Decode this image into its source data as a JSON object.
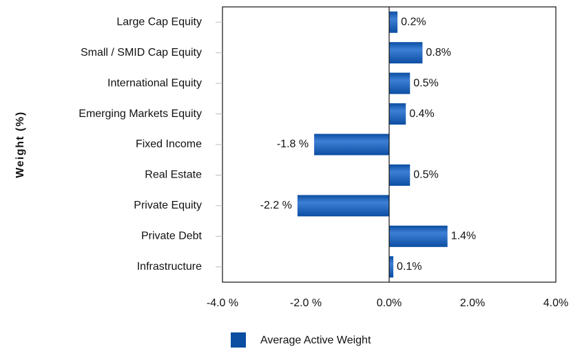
{
  "chart_data": {
    "type": "hbar",
    "ylabel": "Weight (%)",
    "categories": [
      "Large Cap Equity",
      "Small / SMID Cap Equity",
      "International Equity",
      "Emerging Markets Equity",
      "Fixed Income",
      "Real Estate",
      "Private Equity",
      "Private Debt",
      "Infrastructure"
    ],
    "series": [
      {
        "name": "Average Active Weight",
        "color": "#0b4ea2",
        "values": [
          0.2,
          0.8,
          0.5,
          0.4,
          -1.8,
          0.5,
          -2.2,
          1.4,
          0.1
        ],
        "value_labels": [
          "0.2%",
          "0.8%",
          "0.5%",
          "0.4%",
          "-1.8 %",
          "0.5%",
          "-2.2 %",
          "1.4%",
          "0.1%"
        ]
      }
    ],
    "xlim": [
      -4,
      4
    ],
    "xticks": [
      {
        "value": -4,
        "label": "-4.0 %"
      },
      {
        "value": -2,
        "label": "-2.0 %"
      },
      {
        "value": 0,
        "label": "0.0%"
      },
      {
        "value": 2,
        "label": "2.0%"
      },
      {
        "value": 4,
        "label": "4.0%"
      }
    ],
    "grid": false,
    "legend": "bottom"
  }
}
